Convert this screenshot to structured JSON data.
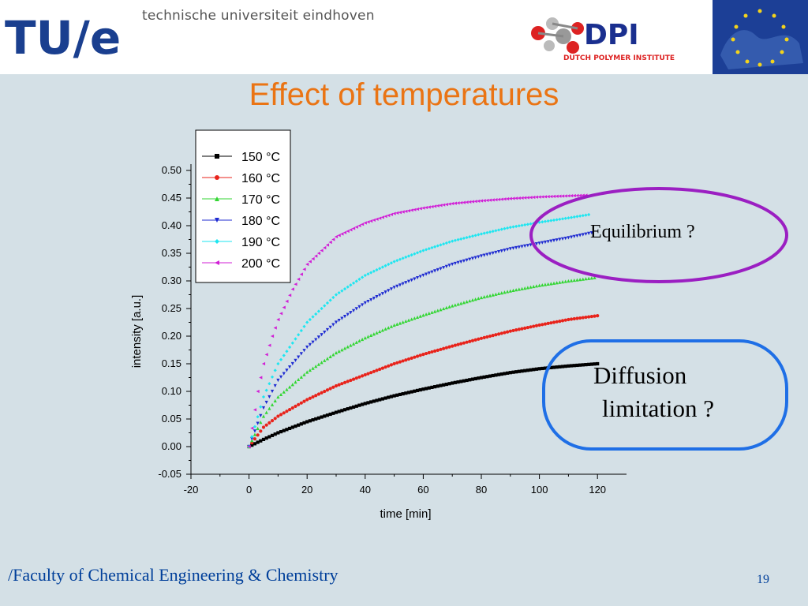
{
  "header": {
    "tue_logo_text": "TU/e",
    "university_name": "technische universiteit eindhoven",
    "dpi_logo_text": "DPI",
    "dpi_subtitle": "DUTCH POLYMER INSTITUTE"
  },
  "slide": {
    "title": "Effect of temperatures",
    "footer": "/Faculty of Chemical Engineering & Chemistry",
    "page_number": "19"
  },
  "callouts": {
    "equilibrium": "Equilibrium ?",
    "diffusion_line1": "Diffusion",
    "diffusion_line2": "limitation ?",
    "equilibrium_color": "#9b1fc2",
    "diffusion_color": "#1f6fe6"
  },
  "chart_data": {
    "type": "scatter",
    "xlabel": "time [min]",
    "ylabel": "intensity [a.u.]",
    "xlim": [
      -20,
      130
    ],
    "ylim": [
      -0.05,
      0.5
    ],
    "xticks": [
      -20,
      0,
      20,
      40,
      60,
      80,
      100,
      120
    ],
    "xtick_labels": [
      "-20",
      "0",
      "20",
      "40",
      "60",
      "80",
      "100",
      "120"
    ],
    "yticks": [
      -0.05,
      0.0,
      0.05,
      0.1,
      0.15,
      0.2,
      0.25,
      0.3,
      0.35,
      0.4,
      0.45,
      0.5
    ],
    "ytick_labels": [
      "-0.05",
      "0.00",
      "0.05",
      "0.10",
      "0.15",
      "0.20",
      "0.25",
      "0.30",
      "0.35",
      "0.40",
      "0.45",
      "0.50"
    ],
    "legend_position": "top-left",
    "series": [
      {
        "name": "150 °C",
        "color": "#000000",
        "marker": "square",
        "x_end": 120,
        "points": [
          [
            0,
            0
          ],
          [
            5,
            0.013
          ],
          [
            10,
            0.025
          ],
          [
            20,
            0.045
          ],
          [
            30,
            0.062
          ],
          [
            40,
            0.078
          ],
          [
            50,
            0.092
          ],
          [
            60,
            0.104
          ],
          [
            70,
            0.115
          ],
          [
            80,
            0.125
          ],
          [
            90,
            0.134
          ],
          [
            100,
            0.141
          ],
          [
            110,
            0.146
          ],
          [
            120,
            0.15
          ]
        ]
      },
      {
        "name": "160 °C",
        "color": "#e8231b",
        "marker": "circle",
        "x_end": 120,
        "points": [
          [
            0,
            0
          ],
          [
            5,
            0.035
          ],
          [
            10,
            0.055
          ],
          [
            20,
            0.085
          ],
          [
            30,
            0.11
          ],
          [
            40,
            0.13
          ],
          [
            50,
            0.15
          ],
          [
            60,
            0.167
          ],
          [
            70,
            0.182
          ],
          [
            80,
            0.196
          ],
          [
            90,
            0.209
          ],
          [
            100,
            0.22
          ],
          [
            110,
            0.23
          ],
          [
            120,
            0.237
          ]
        ]
      },
      {
        "name": "170 °C",
        "color": "#33d633",
        "marker": "triangle-up",
        "x_end": 119,
        "points": [
          [
            0,
            0
          ],
          [
            5,
            0.055
          ],
          [
            10,
            0.09
          ],
          [
            20,
            0.135
          ],
          [
            30,
            0.17
          ],
          [
            40,
            0.197
          ],
          [
            50,
            0.22
          ],
          [
            60,
            0.238
          ],
          [
            70,
            0.255
          ],
          [
            80,
            0.27
          ],
          [
            90,
            0.282
          ],
          [
            100,
            0.292
          ],
          [
            110,
            0.3
          ],
          [
            119,
            0.306
          ]
        ]
      },
      {
        "name": "180 °C",
        "color": "#1f2bd1",
        "marker": "triangle-down",
        "x_end": 118,
        "points": [
          [
            0,
            0
          ],
          [
            5,
            0.07
          ],
          [
            10,
            0.12
          ],
          [
            20,
            0.18
          ],
          [
            30,
            0.225
          ],
          [
            40,
            0.26
          ],
          [
            50,
            0.288
          ],
          [
            60,
            0.31
          ],
          [
            70,
            0.33
          ],
          [
            80,
            0.345
          ],
          [
            90,
            0.358
          ],
          [
            100,
            0.368
          ],
          [
            110,
            0.378
          ],
          [
            118,
            0.387
          ]
        ]
      },
      {
        "name": "190 °C",
        "color": "#1ee6f0",
        "marker": "diamond",
        "x_end": 117,
        "points": [
          [
            0,
            0
          ],
          [
            5,
            0.09
          ],
          [
            10,
            0.15
          ],
          [
            20,
            0.225
          ],
          [
            30,
            0.275
          ],
          [
            40,
            0.31
          ],
          [
            50,
            0.335
          ],
          [
            60,
            0.355
          ],
          [
            70,
            0.372
          ],
          [
            80,
            0.385
          ],
          [
            90,
            0.397
          ],
          [
            100,
            0.406
          ],
          [
            110,
            0.414
          ],
          [
            117,
            0.42
          ]
        ]
      },
      {
        "name": "200 °C",
        "color": "#d11fd6",
        "marker": "triangle-left",
        "x_end": 116,
        "points": [
          [
            0,
            0
          ],
          [
            3,
            0.1
          ],
          [
            5,
            0.15
          ],
          [
            8,
            0.2
          ],
          [
            10,
            0.23
          ],
          [
            15,
            0.285
          ],
          [
            20,
            0.33
          ],
          [
            30,
            0.38
          ],
          [
            40,
            0.405
          ],
          [
            50,
            0.422
          ],
          [
            60,
            0.432
          ],
          [
            70,
            0.44
          ],
          [
            80,
            0.445
          ],
          [
            90,
            0.449
          ],
          [
            100,
            0.452
          ],
          [
            110,
            0.454
          ],
          [
            116,
            0.455
          ]
        ]
      }
    ]
  }
}
